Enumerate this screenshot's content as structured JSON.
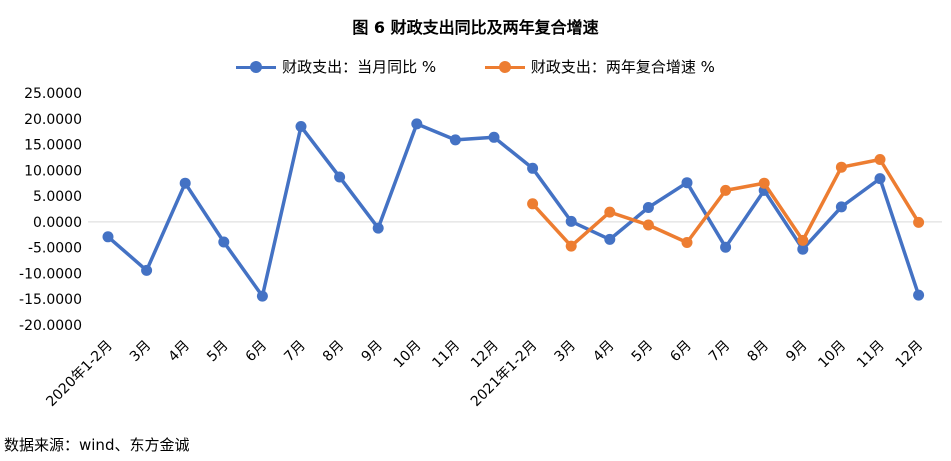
{
  "title": "图 6  财政支出同比及两年复合增速",
  "source": "数据来源：wind、东方金诚",
  "colors": {
    "series1": "#4472C4",
    "series2": "#ED7D31",
    "zero_line": "#D9D9D9"
  },
  "chart_data": {
    "type": "line",
    "title": "图 6  财政支出同比及两年复合增速",
    "ylim": [
      -20,
      25
    ],
    "y_ticks": [
      "25.0000",
      "20.0000",
      "15.0000",
      "10.0000",
      "5.0000",
      "0.0000",
      "-5.0000",
      "-10.0000",
      "-15.0000",
      "-20.0000"
    ],
    "y_tick_values": [
      25,
      20,
      15,
      10,
      5,
      0,
      -5,
      -10,
      -15,
      -20
    ],
    "grid": false,
    "legend_position": "top",
    "categories": [
      "2020年1-2月",
      "3月",
      "4月",
      "5月",
      "6月",
      "7月",
      "8月",
      "9月",
      "10月",
      "11月",
      "12月",
      "2021年1-2月",
      "3月",
      "4月",
      "5月",
      "6月",
      "7月",
      "8月",
      "9月",
      "10月",
      "11月",
      "12月"
    ],
    "series": [
      {
        "name": "财政支出：当月同比 %",
        "values": [
          -2.9,
          -9.4,
          7.5,
          -3.9,
          -14.4,
          18.5,
          8.7,
          -1.2,
          19.0,
          15.9,
          16.4,
          10.4,
          0.1,
          -3.4,
          2.8,
          7.6,
          -4.9,
          6.1,
          -5.3,
          2.9,
          8.4,
          -14.2
        ]
      },
      {
        "name": "财政支出：两年复合增速 %",
        "values": [
          null,
          null,
          null,
          null,
          null,
          null,
          null,
          null,
          null,
          null,
          null,
          3.5,
          -4.7,
          1.9,
          -0.6,
          -4.0,
          6.1,
          7.5,
          -3.6,
          10.6,
          12.1,
          -0.1
        ]
      }
    ]
  }
}
